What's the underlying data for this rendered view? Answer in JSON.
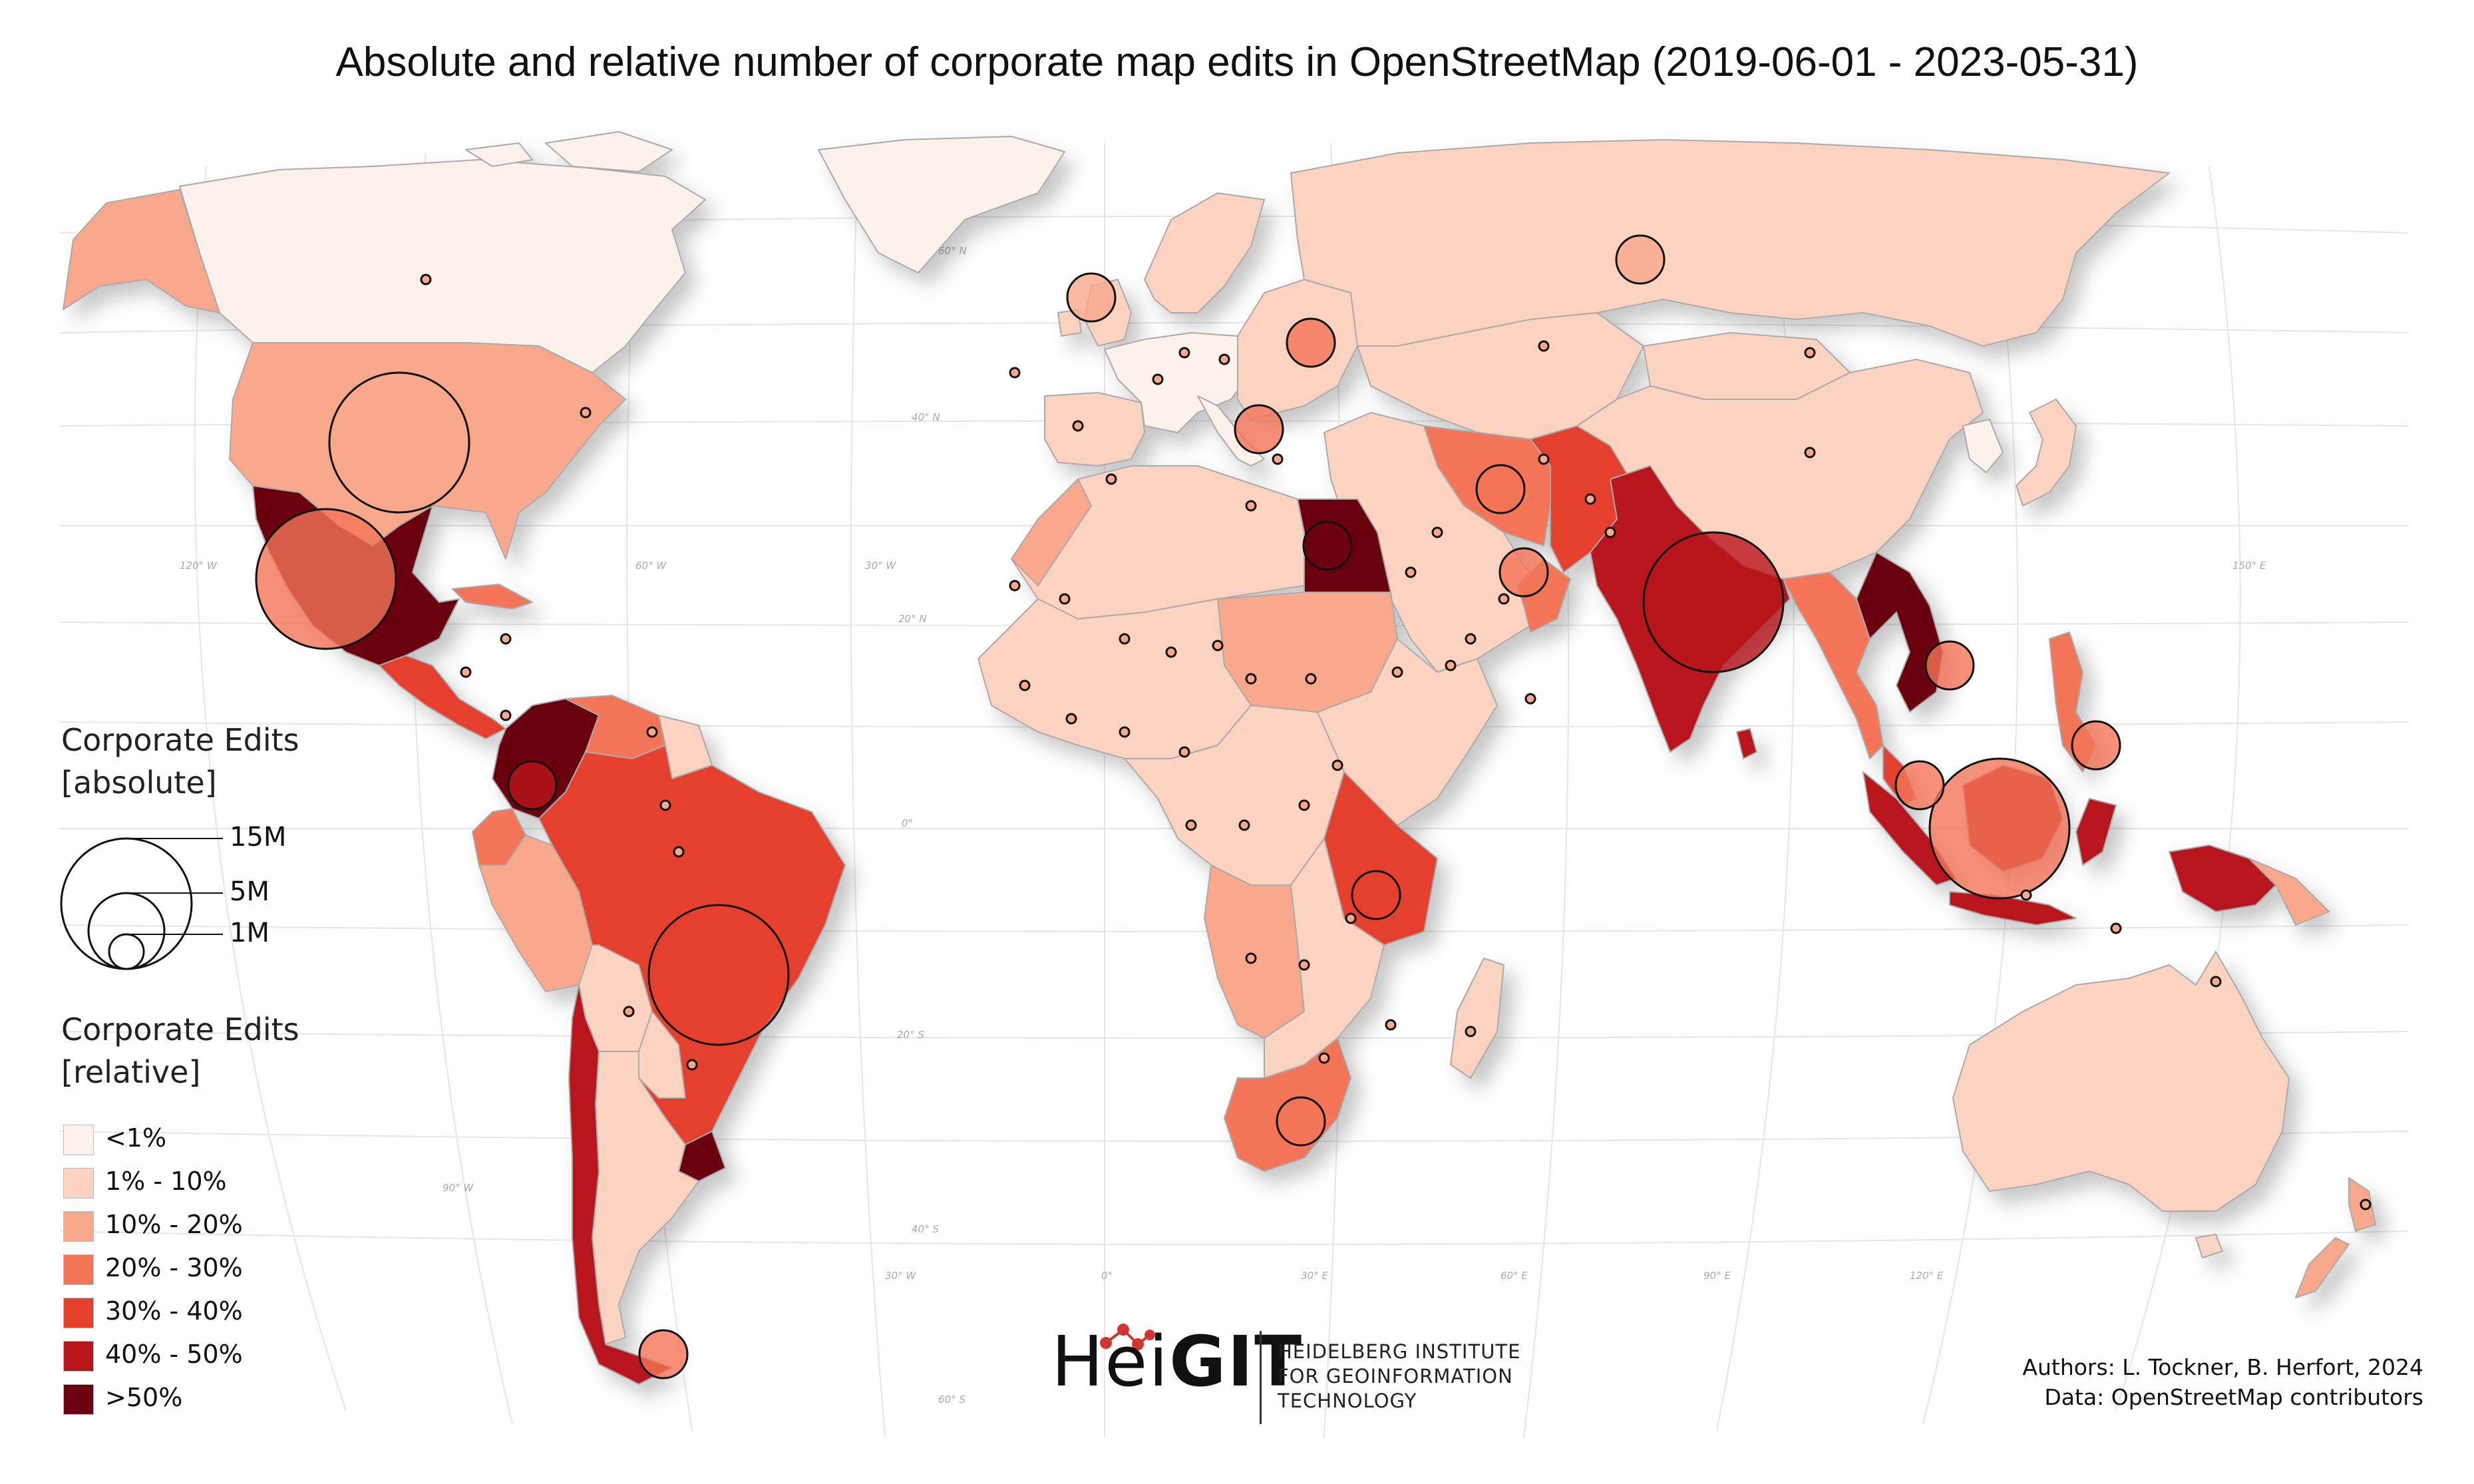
{
  "title": "Absolute and relative number of corporate map edits in OpenStreetMap (2019-06-01 - 2023-05-31)",
  "legend": {
    "absolute_heading_line1": "Corporate Edits",
    "absolute_heading_line2": "[absolute]",
    "size_labels": [
      "15M",
      "5M",
      "1M"
    ],
    "relative_heading_line1": "Corporate Edits",
    "relative_heading_line2": "[relative]",
    "classes": [
      {
        "label": "<1%",
        "color": "#fdf1ec"
      },
      {
        "label": "1% - 10%",
        "color": "#fcd3c0"
      },
      {
        "label": "10% - 20%",
        "color": "#f9a88c"
      },
      {
        "label": "20% - 30%",
        "color": "#f47458"
      },
      {
        "label": "30% - 40%",
        "color": "#e5402e"
      },
      {
        "label": "40% - 50%",
        "color": "#b8151b"
      },
      {
        "label": ">50%",
        "color": "#6b0010"
      }
    ]
  },
  "grid_labels": {
    "lat": [
      "60° N",
      "40° N",
      "20° N",
      "0°",
      "20° S",
      "40° S",
      "60° S"
    ],
    "lon": [
      "120° W",
      "60° W",
      "30° W",
      "150° E",
      "90° W",
      "30° W",
      "0°",
      "30° E",
      "60° E",
      "90° E",
      "120° E"
    ]
  },
  "logo": {
    "part1": "Hei",
    "part2": "GIT"
  },
  "institute": [
    "HEIDELBERG INSTITUTE",
    "FOR GEOINFORMATION",
    "TECHNOLOGY"
  ],
  "credits": {
    "authors": "Authors: L. Tockner, B. Herfort, 2024",
    "data": "Data: OpenStreetMap contributors"
  },
  "countries": [
    {
      "name": "Canada",
      "class": 0
    },
    {
      "name": "Alaska (USA)",
      "class": 2
    },
    {
      "name": "Greenland",
      "class": 0
    },
    {
      "name": "United States",
      "class": 2
    },
    {
      "name": "Mexico",
      "class": 6
    },
    {
      "name": "Central America",
      "class": 4
    },
    {
      "name": "Cuba",
      "class": 3
    },
    {
      "name": "Colombia",
      "class": 6
    },
    {
      "name": "Venezuela",
      "class": 3
    },
    {
      "name": "Guianas",
      "class": 1
    },
    {
      "name": "Brazil",
      "class": 4
    },
    {
      "name": "Ecuador",
      "class": 3
    },
    {
      "name": "Peru",
      "class": 2
    },
    {
      "name": "Bolivia",
      "class": 1
    },
    {
      "name": "Paraguay",
      "class": 1
    },
    {
      "name": "Chile",
      "class": 5
    },
    {
      "name": "Argentina",
      "class": 1
    },
    {
      "name": "Uruguay",
      "class": 6
    },
    {
      "name": "Western Europe",
      "class": 0
    },
    {
      "name": "Iberia",
      "class": 1
    },
    {
      "name": "United Kingdom",
      "class": 1
    },
    {
      "name": "Scandinavia",
      "class": 1
    },
    {
      "name": "Eastern Europe",
      "class": 1
    },
    {
      "name": "Italy",
      "class": 0
    },
    {
      "name": "Russia",
      "class": 1
    },
    {
      "name": "Kazakhstan & Central Asia",
      "class": 1
    },
    {
      "name": "China",
      "class": 1
    },
    {
      "name": "Mongolia",
      "class": 1
    },
    {
      "name": "Japan",
      "class": 1
    },
    {
      "name": "Korea",
      "class": 0
    },
    {
      "name": "Middle East",
      "class": 1
    },
    {
      "name": "Iran",
      "class": 3
    },
    {
      "name": "Pakistan & Afghanistan",
      "class": 4
    },
    {
      "name": "India",
      "class": 5
    },
    {
      "name": "Oman",
      "class": 3
    },
    {
      "name": "Myanmar & Thailand",
      "class": 3
    },
    {
      "name": "Vietnam",
      "class": 6
    },
    {
      "name": "Malaysia",
      "class": 4
    },
    {
      "name": "Philippines",
      "class": 3
    },
    {
      "name": "Indonesia",
      "class": 5
    },
    {
      "name": "New Guinea",
      "class": 5
    },
    {
      "name": "Papua New Guinea",
      "class": 2
    },
    {
      "name": "Australia",
      "class": 1
    },
    {
      "name": "New Zealand",
      "class": 2
    },
    {
      "name": "North Africa",
      "class": 1
    },
    {
      "name": "Morocco",
      "class": 2
    },
    {
      "name": "Egypt",
      "class": 6
    },
    {
      "name": "Sudan",
      "class": 2
    },
    {
      "name": "Saharan Africa",
      "class": 1
    },
    {
      "name": "Central Africa",
      "class": 1
    },
    {
      "name": "East Africa",
      "class": 1
    },
    {
      "name": "Tanzania",
      "class": 4
    },
    {
      "name": "Angola & Namibia",
      "class": 2
    },
    {
      "name": "Southern Africa",
      "class": 1
    },
    {
      "name": "South Africa",
      "class": 3
    },
    {
      "name": "Madagascar",
      "class": 1
    }
  ],
  "edit_markers": [
    {
      "name": "United States",
      "size": "large",
      "class": 2
    },
    {
      "name": "Mexico",
      "size": "large",
      "class": 3
    },
    {
      "name": "Brazil",
      "size": "large",
      "class": 4
    },
    {
      "name": "India",
      "size": "large",
      "class": 5
    },
    {
      "name": "Indonesia",
      "size": "large",
      "class": 3
    },
    {
      "name": "Egypt",
      "size": "medium",
      "class": 6
    },
    {
      "name": "Colombia",
      "size": "medium",
      "class": 5
    },
    {
      "name": "Tanzania",
      "size": "medium",
      "class": 4
    },
    {
      "name": "Vietnam",
      "size": "medium",
      "class": 3
    },
    {
      "name": "Philippines",
      "size": "medium",
      "class": 3
    },
    {
      "name": "Russia",
      "size": "medium",
      "class": 2
    },
    {
      "name": "Ukraine",
      "size": "medium",
      "class": 3
    },
    {
      "name": "Chile",
      "size": "medium",
      "class": 3
    },
    {
      "name": "Malaysia",
      "size": "medium",
      "class": 3
    },
    {
      "name": "United Kingdom",
      "size": "medium",
      "class": 2
    },
    {
      "name": "South Africa",
      "size": "medium",
      "class": 3
    },
    {
      "name": "Greece",
      "size": "medium",
      "class": 3
    },
    {
      "name": "United Arab Emirates",
      "size": "medium",
      "class": 3
    },
    {
      "name": "Iran",
      "size": "medium",
      "class": 3
    }
  ]
}
